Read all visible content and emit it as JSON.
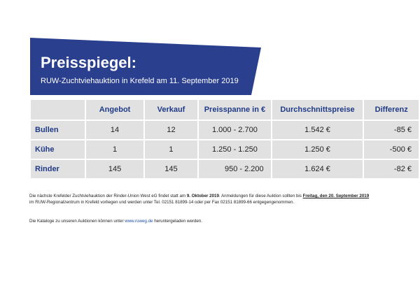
{
  "banner": {
    "title": "Preisspiegel:",
    "subtitle": "RUW-Zuchtviehauktion in Krefeld am 11. September 2019",
    "color": "#2b3f8f"
  },
  "table": {
    "headers": [
      "Angebot",
      "Verkauf",
      "Preisspanne in €",
      "Durchschnittspreise",
      "Differenz"
    ],
    "rows": [
      {
        "label": "Bullen",
        "angebot": "14",
        "verkauf": "12",
        "spanne": "1.000 - 2.700",
        "schnitt": "1.542 €",
        "differenz": "-85 €"
      },
      {
        "label": "Kühe",
        "angebot": "1",
        "verkauf": "1",
        "spanne": "1.250 - 1.250",
        "schnitt": "1.250 €",
        "differenz": "-500 €"
      },
      {
        "label": "Rinder",
        "angebot": "145",
        "verkauf": "145",
        "spanne": "950 - 2.200",
        "schnitt": "1.624 €",
        "differenz": "-82 €"
      }
    ]
  },
  "note1": {
    "part1": "Die nächste Krefelder Zuchtviehauktion der Rinder-Union West eG findet statt am ",
    "date1": "9. Oktober 2019",
    "part2": ". Anmeldungen für diese Auktion sollten bis ",
    "date2": "Freitag, den 20. September 2019",
    "line2": "im RUW-Regionalzentrum in Krefeld vorliegen und werden unter Tel. 02151 81899-14 oder per Fax 02151  81899-66 entgegengenommen."
  },
  "note2": {
    "part1": "Die Kataloge zu unseren Auktionen können unter ",
    "link": "www.ruweg.de",
    "part2": " heruntergeladen werden."
  }
}
